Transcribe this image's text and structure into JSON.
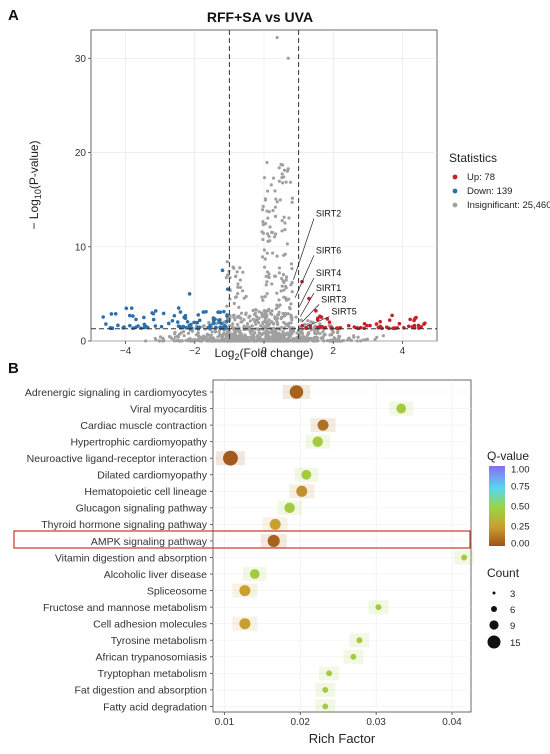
{
  "panel_a": {
    "letter": "A",
    "chart_data": {
      "type": "scatter",
      "title": "RFF+SA vs UVA",
      "xlabel_pre": "Log",
      "xlabel_sub": "2",
      "xlabel_post": "(Fold change)",
      "ylabel_pre": "− Log",
      "ylabel_sub": "10",
      "ylabel_post": "(P-value)",
      "xlim": [
        -5,
        5
      ],
      "ylim": [
        0,
        33
      ],
      "x_ticks": [
        -4,
        -2,
        0,
        2,
        4
      ],
      "y_ticks": [
        0,
        10,
        20,
        30
      ],
      "x_tick_labels": [
        "−4",
        "−2",
        "0",
        "2",
        "4"
      ],
      "y_tick_labels": [
        "0",
        "10",
        "20",
        "30"
      ],
      "fc_cutoffs": [
        -1,
        1
      ],
      "p_cutoff": 1.3,
      "legend": {
        "title": "Statistics",
        "position": "right",
        "items": [
          {
            "label": "Up: 78",
            "color": "#c8202b"
          },
          {
            "label": "Down: 139",
            "color": "#2b6fad"
          },
          {
            "label": "Insignificant: 25,460",
            "color": "#a0a0a0"
          }
        ]
      },
      "labeled_genes": [
        {
          "name": "SIRT2",
          "x": 0.85,
          "y": 6.5,
          "lx": 1.5,
          "ly": 13.2
        },
        {
          "name": "SIRT6",
          "x": 0.9,
          "y": 4.6,
          "lx": 1.5,
          "ly": 9.3
        },
        {
          "name": "SIRT4",
          "x": 1.0,
          "y": 3.5,
          "lx": 1.5,
          "ly": 6.9
        },
        {
          "name": "SIRT1",
          "x": 1.05,
          "y": 2.6,
          "lx": 1.5,
          "ly": 5.3
        },
        {
          "name": "SIRT3",
          "x": 1.1,
          "y": 2.0,
          "lx": 1.65,
          "ly": 4.1
        },
        {
          "name": "SIRT5",
          "x": 1.2,
          "y": 1.5,
          "lx": 1.95,
          "ly": 2.8
        }
      ]
    }
  },
  "panel_b": {
    "letter": "B",
    "chart_data": {
      "type": "scatter",
      "xlabel": "Rich Factor",
      "xlim": [
        0.0085,
        0.0425
      ],
      "x_ticks": [
        0.01,
        0.02,
        0.03,
        0.04
      ],
      "x_tick_labels": [
        "0.01",
        "0.02",
        "0.03",
        "0.04"
      ],
      "categories": [
        "Adrenergic signaling in cardiomyocytes",
        "Viral myocarditis",
        "Cardiac muscle contraction",
        "Hypertrophic cardiomyopathy",
        "Neuroactive ligand-receptor interaction",
        "Dilated cardiomyopathy",
        "Hematopoietic cell lineage",
        "Glucagon signaling pathway",
        "Thyroid hormone signaling pathway",
        "AMPK signaling pathway",
        "Vitamin digestion and absorption",
        "Alcoholic liver disease",
        "Spliceosome",
        "Fructose and mannose metabolism",
        "Cell adhesion molecules",
        "Tyrosine metabolism",
        "African trypanosomiasis",
        "Tryptophan metabolism",
        "Fat digestion and absorption",
        "Fatty acid degradation"
      ],
      "points": [
        {
          "rich": 0.0195,
          "q": 0.05,
          "count": 12
        },
        {
          "rich": 0.0333,
          "q": 0.45,
          "count": 5
        },
        {
          "rich": 0.023,
          "q": 0.1,
          "count": 7
        },
        {
          "rich": 0.0223,
          "q": 0.45,
          "count": 6
        },
        {
          "rich": 0.0108,
          "q": 0.02,
          "count": 15
        },
        {
          "rich": 0.0208,
          "q": 0.45,
          "count": 5
        },
        {
          "rich": 0.0202,
          "q": 0.2,
          "count": 7
        },
        {
          "rich": 0.0186,
          "q": 0.45,
          "count": 6
        },
        {
          "rich": 0.0167,
          "q": 0.25,
          "count": 7
        },
        {
          "rich": 0.0165,
          "q": 0.05,
          "count": 9
        },
        {
          "rich": 0.0416,
          "q": 0.45,
          "count": 1
        },
        {
          "rich": 0.014,
          "q": 0.45,
          "count": 5
        },
        {
          "rich": 0.0127,
          "q": 0.25,
          "count": 7
        },
        {
          "rich": 0.0303,
          "q": 0.45,
          "count": 1
        },
        {
          "rich": 0.0127,
          "q": 0.25,
          "count": 7
        },
        {
          "rich": 0.0278,
          "q": 0.45,
          "count": 1
        },
        {
          "rich": 0.027,
          "q": 0.45,
          "count": 1
        },
        {
          "rich": 0.0238,
          "q": 0.45,
          "count": 1
        },
        {
          "rich": 0.0233,
          "q": 0.45,
          "count": 1
        },
        {
          "rich": 0.0233,
          "q": 0.45,
          "count": 1
        }
      ],
      "highlighted_category": "AMPK signaling pathway",
      "highlight_color": "#c0392b",
      "color_legend": {
        "title": "Q-value",
        "ticks": [
          "1.00",
          "0.75",
          "0.50",
          "0.25",
          "0.00"
        ],
        "colors": [
          "#8a6cf0",
          "#5ad6f0",
          "#9ad640",
          "#c8a030",
          "#a0521a"
        ]
      },
      "size_legend": {
        "title": "Count",
        "items": [
          "3",
          "6",
          "9",
          "15"
        ]
      }
    }
  }
}
